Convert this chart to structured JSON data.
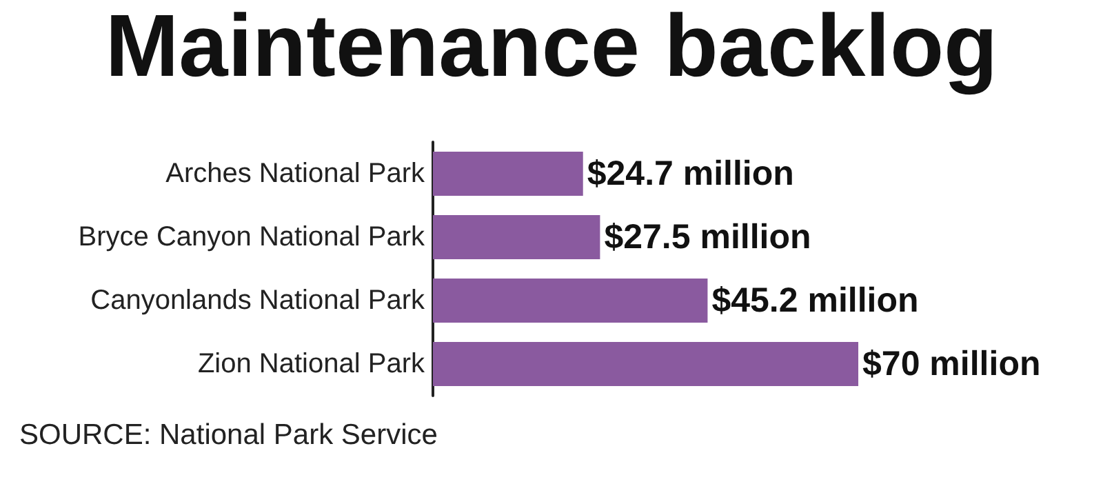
{
  "chart_data": {
    "type": "bar",
    "orientation": "horizontal",
    "title": "Maintenance backlog",
    "categories": [
      "Arches National Park",
      "Bryce Canyon National Park",
      "Canyonlands National Park",
      "Zion National Park"
    ],
    "values": [
      24.7,
      27.5,
      45.2,
      70
    ],
    "value_labels": [
      "$24.7 million",
      "$27.5 million",
      "$45.2 million",
      "$70 million"
    ],
    "color": "#8a5a9f",
    "annotations": [
      "SOURCE: National Park Service"
    ]
  }
}
